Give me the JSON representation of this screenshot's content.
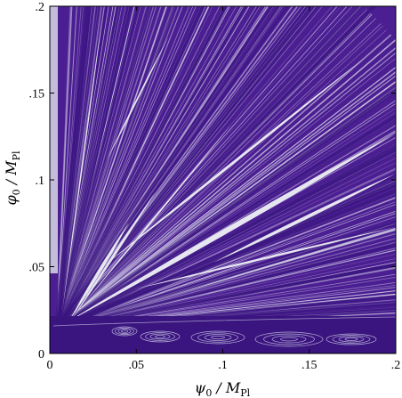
{
  "chart_data": {
    "type": "heatmap",
    "description_level": "basin-of-attraction map of initial conditions",
    "x": {
      "label_main": "ψ",
      "label_sub0": "0",
      "label_rest": "/ M",
      "label_sub1": "Pl",
      "range": [
        0,
        0.2
      ],
      "ticks": [
        0,
        0.05,
        0.1,
        0.15,
        0.2
      ],
      "tick_labels": [
        "0",
        ".05",
        ".1",
        ".15",
        ".2"
      ]
    },
    "y": {
      "label_main": "φ",
      "label_sub0": "0",
      "label_rest": "/ M",
      "label_sub1": "Pl",
      "range": [
        0,
        0.2
      ],
      "ticks": [
        0,
        0.05,
        0.1,
        0.15,
        0.2
      ],
      "tick_labels": [
        "0",
        ".05",
        ".1",
        ".15",
        ".2"
      ]
    },
    "colors": {
      "base": "#4b1e92",
      "dark": "#3a1580",
      "light": "#e6e6f0"
    },
    "grid": false,
    "legend": "none"
  }
}
